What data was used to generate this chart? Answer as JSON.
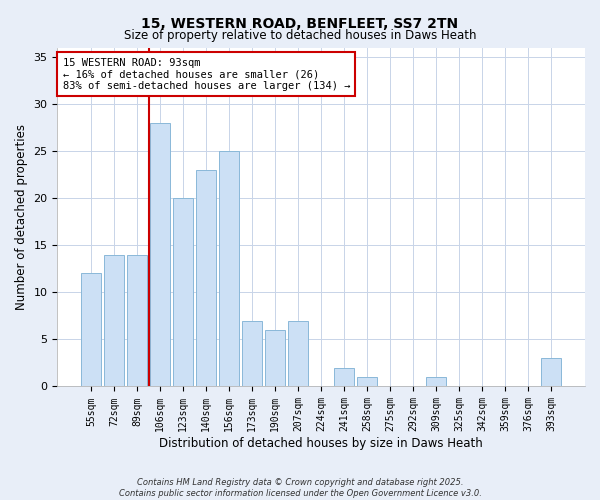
{
  "title": "15, WESTERN ROAD, BENFLEET, SS7 2TN",
  "subtitle": "Size of property relative to detached houses in Daws Heath",
  "xlabel": "Distribution of detached houses by size in Daws Heath",
  "ylabel": "Number of detached properties",
  "bar_labels": [
    "55sqm",
    "72sqm",
    "89sqm",
    "106sqm",
    "123sqm",
    "140sqm",
    "156sqm",
    "173sqm",
    "190sqm",
    "207sqm",
    "224sqm",
    "241sqm",
    "258sqm",
    "275sqm",
    "292sqm",
    "309sqm",
    "325sqm",
    "342sqm",
    "359sqm",
    "376sqm",
    "393sqm"
  ],
  "bar_values": [
    12,
    14,
    14,
    28,
    20,
    23,
    25,
    7,
    6,
    7,
    0,
    2,
    1,
    0,
    0,
    1,
    0,
    0,
    0,
    0,
    3
  ],
  "bar_color": "#cce0f5",
  "bar_edge_color": "#8ab8d8",
  "vline_x": 2.5,
  "vline_color": "#cc0000",
  "annotation_text": "15 WESTERN ROAD: 93sqm\n← 16% of detached houses are smaller (26)\n83% of semi-detached houses are larger (134) →",
  "annotation_box_color": "#ffffff",
  "annotation_box_edge": "#cc0000",
  "ylim": [
    0,
    36
  ],
  "yticks": [
    0,
    5,
    10,
    15,
    20,
    25,
    30,
    35
  ],
  "footer1": "Contains HM Land Registry data © Crown copyright and database right 2025.",
  "footer2": "Contains public sector information licensed under the Open Government Licence v3.0.",
  "bg_color": "#e8eef8",
  "plot_bg_color": "#ffffff",
  "grid_color": "#c8d4e8"
}
